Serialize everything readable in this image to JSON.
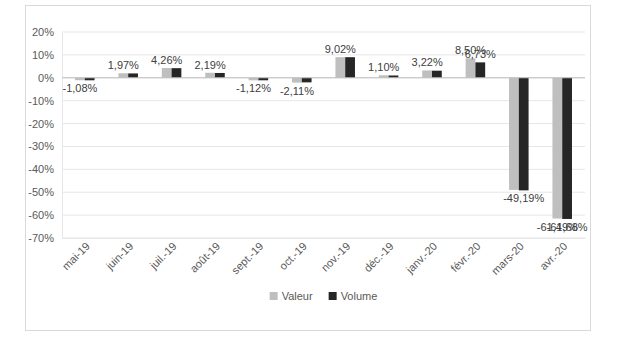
{
  "chart_data": {
    "type": "bar",
    "categories": [
      "mai-19",
      "juin-19",
      "juil.-19",
      "août-19",
      "sept.-19",
      "oct.-19",
      "nov.-19",
      "déc.-19",
      "janv.-20",
      "févr.-20",
      "mars-20",
      "avr.-20"
    ],
    "series": [
      {
        "name": "Valeur",
        "color": "#bfbfbf",
        "values": [
          -1.08,
          1.97,
          4.26,
          2.19,
          -1.12,
          -2.11,
          9.02,
          1.1,
          3.22,
          8.5,
          -49.0,
          -61.49
        ],
        "value_labels": [
          "-1,08%",
          "1,97%",
          "4,26%",
          "2,19%",
          "-1,12%",
          "-2,11%",
          "9,02%",
          "1,10%",
          "3,22%",
          "8,50%",
          null,
          "-61,49%"
        ]
      },
      {
        "name": "Volume",
        "color": "#262626",
        "values": [
          -1.1,
          1.9,
          4.2,
          2.1,
          -1.1,
          -2.0,
          9.0,
          1.0,
          3.1,
          6.73,
          -49.19,
          -61.68
        ],
        "value_labels": [
          null,
          null,
          null,
          null,
          null,
          null,
          null,
          null,
          null,
          "6,73%",
          "-49,19%",
          "-61,68%"
        ]
      }
    ],
    "ylim": [
      -70,
      20
    ],
    "yticks": [
      {
        "value": -70,
        "label": "-70%"
      },
      {
        "value": -60,
        "label": "-60%"
      },
      {
        "value": -50,
        "label": "-50%"
      },
      {
        "value": -40,
        "label": "-40%"
      },
      {
        "value": -30,
        "label": "-30%"
      },
      {
        "value": -20,
        "label": "-20%"
      },
      {
        "value": -10,
        "label": "-10%"
      },
      {
        "value": 0,
        "label": "0%"
      },
      {
        "value": 10,
        "label": "10%"
      },
      {
        "value": 20,
        "label": "20%"
      }
    ],
    "grid": true,
    "legend": "bottom",
    "data_labels": true
  }
}
